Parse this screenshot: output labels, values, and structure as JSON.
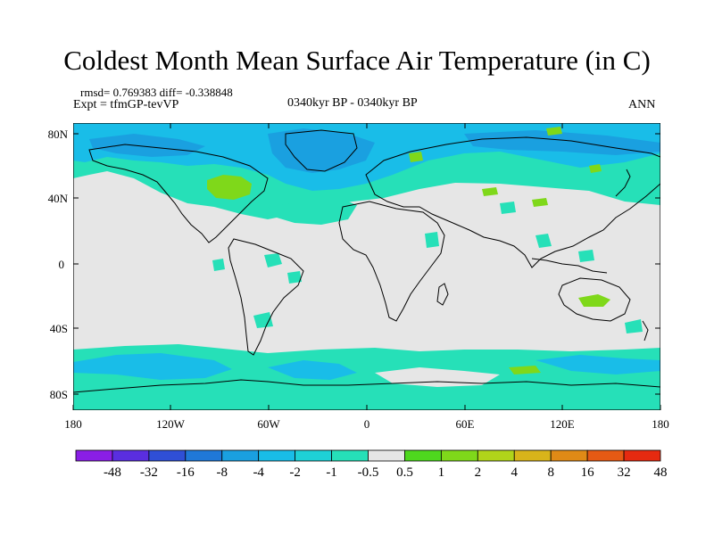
{
  "title": "Coldest Month Mean Surface Air Temperature (in C)",
  "stats_line": "rmsd= 0.769383 diff= -0.338848",
  "experiment_line": "Expt = tfmGP-tevVP",
  "period_label": "0340kyr BP - 0340kyr BP",
  "season_label": "ANN",
  "lat_labels": [
    "80N",
    "40N",
    "0",
    "40S",
    "80S"
  ],
  "lon_labels": [
    "180",
    "120W",
    "60W",
    "0",
    "60E",
    "120E",
    "180"
  ],
  "colorbar": {
    "labels": [
      "-48",
      "-32",
      "-16",
      "-8",
      "-4",
      "-2",
      "-1",
      "-0.5",
      "0.5",
      "1",
      "2",
      "4",
      "8",
      "16",
      "32",
      "48"
    ],
    "colors": [
      "#8a1ee6",
      "#5a2ee0",
      "#2f4fd6",
      "#1f78d8",
      "#1aa0e0",
      "#19bde8",
      "#1ed1d6",
      "#26e0b8",
      "#e6e6e6",
      "#4ed81e",
      "#7fd81a",
      "#b0d41a",
      "#d8b41a",
      "#e08a16",
      "#e65a14",
      "#e62a10"
    ]
  },
  "colors": {
    "background_field": "#e6e6e6",
    "coast": "#000000",
    "cool_small": "#26e0b8",
    "cool_mid": "#19bde8",
    "cool_strong": "#1aa0e0",
    "warm_small": "#7fd81a"
  }
}
